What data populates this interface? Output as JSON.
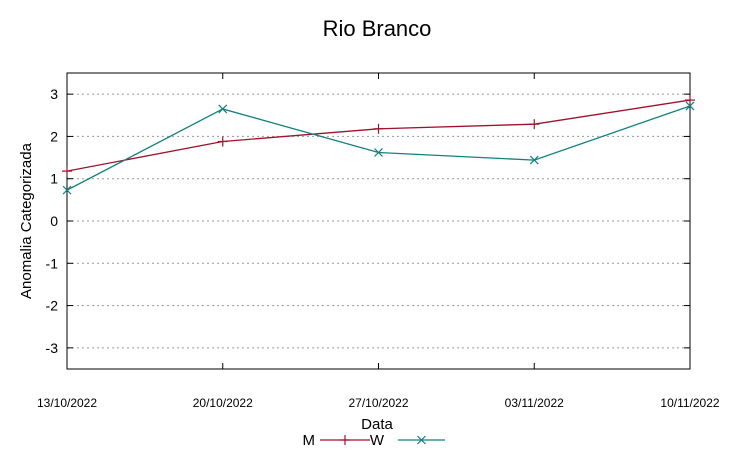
{
  "chart_data": {
    "type": "line",
    "title": "Rio Branco",
    "xlabel": "Data",
    "ylabel": "Anomalia Categorizada",
    "categories": [
      "13/10/2022",
      "20/10/2022",
      "27/10/2022",
      "03/11/2022",
      "10/11/2022"
    ],
    "yticks": [
      "3",
      "2",
      "1",
      "0",
      "-1",
      "-2",
      "-3"
    ],
    "ylim": [
      -3.5,
      3.5
    ],
    "grid": "horizontal-dotted",
    "legend_placement": "bottom-center",
    "series": [
      {
        "name": "M",
        "color": "#a0112d",
        "marker": "plus",
        "values": [
          1.18,
          1.88,
          2.18,
          2.29,
          2.86
        ]
      },
      {
        "name": "W",
        "color": "#13807f",
        "marker": "cross",
        "values": [
          0.73,
          2.65,
          1.62,
          1.44,
          2.72
        ]
      }
    ]
  }
}
